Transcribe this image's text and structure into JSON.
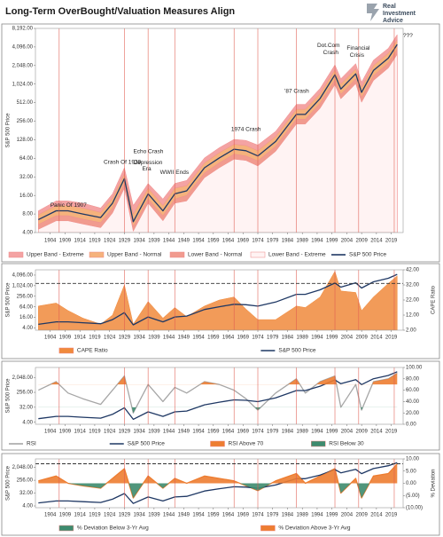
{
  "logo": [
    "Real",
    "Investment",
    "Advice"
  ],
  "chart_data": [
    {
      "type": "line",
      "title": "Long-Term OverBought/Valuation Measures Align",
      "ylabel": "S&P 500 Price",
      "log_y": true,
      "x": [
        1900,
        1906,
        1910,
        1915,
        1921,
        1925,
        1929,
        1932,
        1937,
        1942,
        1946,
        1950,
        1956,
        1961,
        1966,
        1970,
        1974,
        1980,
        1987,
        1990,
        1995,
        2000,
        2002,
        2007,
        2009,
        2013,
        2018,
        2021
      ],
      "xlim": [
        1899,
        2023
      ],
      "xticks": [
        1904,
        1909,
        1914,
        1919,
        1924,
        1929,
        1934,
        1939,
        1944,
        1949,
        1954,
        1959,
        1964,
        1969,
        1974,
        1979,
        1984,
        1989,
        1994,
        1999,
        2004,
        2009,
        2014,
        2019
      ],
      "ylim": [
        4,
        8192
      ],
      "yticks": [
        {
          "value": 4,
          "label": "4.00"
        },
        {
          "value": 8,
          "label": "8.00"
        },
        {
          "value": 16,
          "label": "16.00"
        },
        {
          "value": 32,
          "label": "32.00"
        },
        {
          "value": 64,
          "label": "64.00"
        },
        {
          "value": 128,
          "label": "128.00"
        },
        {
          "value": 256,
          "label": "256.00"
        },
        {
          "value": 512,
          "label": "512.00"
        },
        {
          "value": 1024,
          "label": "1,024.00"
        },
        {
          "value": 2048,
          "label": "2,048.00"
        },
        {
          "value": 4096,
          "label": "4,096.00"
        },
        {
          "value": 8192,
          "label": "8,192.00"
        }
      ],
      "markers": [
        1907,
        1929,
        1937,
        1946,
        1966,
        1974,
        1987,
        2000,
        2008,
        2020
      ],
      "annotations": [
        "Panic Of 1907",
        "Crash Of 1929",
        "Echo Crash",
        "Depression",
        "Era",
        "WWII Ends",
        "1974 Crash",
        "'87 Crash",
        "Dot.Com",
        "Crash",
        "Financial",
        "Crisis",
        "???"
      ],
      "series": [
        {
          "name": "Upper Band - Extreme",
          "color": "#f4a3a3",
          "style": "band",
          "values": [
            9,
            13,
            13,
            12,
            10,
            17,
            45,
            11,
            25,
            14,
            25,
            28,
            65,
            95,
            130,
            125,
            105,
            175,
            480,
            480,
            870,
            2100,
            1250,
            2200,
            1100,
            2500,
            3900,
            6500
          ]
        },
        {
          "name": "Upper Band - Normal",
          "color": "#f5b27c",
          "style": "band",
          "values": [
            7.8,
            11,
            11,
            10,
            8.5,
            14.5,
            36,
            8,
            21,
            11,
            21,
            23,
            54,
            79,
            108,
            103,
            85,
            145,
            400,
            400,
            720,
            1750,
            1030,
            1800,
            910,
            2050,
            3250,
            5400
          ]
        },
        {
          "name": "Lower Band - Normal",
          "color": "#f19b8f",
          "style": "band",
          "values": [
            5.4,
            7.5,
            7.5,
            6.6,
            5.8,
            10,
            25,
            5,
            14,
            7.5,
            14,
            16,
            37,
            54,
            75,
            70,
            58,
            100,
            275,
            275,
            500,
            1200,
            700,
            1250,
            620,
            1400,
            2250,
            3750
          ]
        },
        {
          "name": "Lower Band - Extreme",
          "color": "#fff3f3",
          "style": "band",
          "values": [
            4.5,
            6.2,
            6.2,
            5.5,
            4.8,
            8.3,
            21,
            4.2,
            12,
            6.2,
            12,
            13,
            31,
            45,
            62,
            59,
            48,
            83,
            230,
            230,
            415,
            1000,
            590,
            1040,
            520,
            1170,
            1870,
            3100
          ]
        },
        {
          "name": "S&P 500 Price",
          "color": "#1f3864",
          "style": "line",
          "values": [
            6.5,
            9,
            9,
            8,
            7,
            12,
            30,
            6,
            17,
            9,
            17,
            19,
            45,
            65,
            90,
            85,
            70,
            120,
            330,
            330,
            600,
            1450,
            850,
            1500,
            750,
            1700,
            2700,
            4500
          ]
        }
      ]
    },
    {
      "type": "line",
      "ylabel": "S&P 500 Price",
      "y2label": "CAPE Ratio",
      "log_y": true,
      "x": [
        1900,
        1906,
        1910,
        1915,
        1921,
        1925,
        1929,
        1932,
        1937,
        1942,
        1946,
        1950,
        1956,
        1961,
        1966,
        1970,
        1974,
        1980,
        1987,
        1990,
        1995,
        2000,
        2002,
        2007,
        2009,
        2013,
        2018,
        2021
      ],
      "xlim": [
        1899,
        2023
      ],
      "xticks": [
        1904,
        1909,
        1914,
        1919,
        1924,
        1929,
        1934,
        1939,
        1944,
        1949,
        1954,
        1959,
        1964,
        1969,
        1974,
        1979,
        1984,
        1989,
        1994,
        1999,
        2004,
        2009,
        2014,
        2019
      ],
      "ylim": [
        3,
        8192
      ],
      "yticks": [
        {
          "value": 4,
          "label": "4.00"
        },
        {
          "value": 16,
          "label": "16.00"
        },
        {
          "value": 64,
          "label": "64.00"
        },
        {
          "value": 256,
          "label": "256.00"
        },
        {
          "value": 1024,
          "label": "1,024.00"
        },
        {
          "value": 4096,
          "label": "4,096.00"
        }
      ],
      "y2lim": [
        2,
        42
      ],
      "y2ticks": [
        {
          "value": 2,
          "label": "2.00"
        },
        {
          "value": 12,
          "label": "12.00"
        },
        {
          "value": 22,
          "label": "22.00"
        },
        {
          "value": 32,
          "label": "32.00"
        },
        {
          "value": 42,
          "label": "42.00"
        }
      ],
      "reference_line": 33,
      "markers": [
        1907,
        1929,
        1937,
        1946,
        1966,
        1974,
        1987,
        2000,
        2008,
        2020
      ],
      "series": [
        {
          "name": "CAPE Ratio",
          "color": "#f08a3c",
          "style": "area",
          "axis": "y2",
          "values": [
            18,
            20,
            15,
            10,
            6,
            12,
            32,
            6,
            21,
            10,
            17,
            11,
            18,
            22,
            24,
            16,
            9,
            9,
            18,
            17,
            24,
            41,
            28,
            27,
            15,
            24,
            33,
            38
          ]
        },
        {
          "name": "S&P 500 Price",
          "color": "#1f3864",
          "style": "line",
          "values": [
            6.5,
            9,
            9,
            8,
            7,
            12,
            30,
            6,
            17,
            9,
            17,
            19,
            45,
            65,
            90,
            85,
            70,
            120,
            330,
            330,
            600,
            1450,
            850,
            1500,
            750,
            1700,
            2700,
            4500
          ]
        }
      ]
    },
    {
      "type": "line",
      "ylabel": "S&P 500 Price",
      "log_y": true,
      "x": [
        1900,
        1906,
        1910,
        1915,
        1921,
        1925,
        1929,
        1932,
        1937,
        1942,
        1946,
        1950,
        1956,
        1961,
        1966,
        1970,
        1974,
        1980,
        1987,
        1990,
        1995,
        2000,
        2002,
        2007,
        2009,
        2013,
        2018,
        2021
      ],
      "xlim": [
        1899,
        2023
      ],
      "xticks": [
        1904,
        1909,
        1914,
        1919,
        1924,
        1929,
        1934,
        1939,
        1944,
        1949,
        1954,
        1959,
        1964,
        1969,
        1974,
        1979,
        1984,
        1989,
        1994,
        1999,
        2004,
        2009,
        2014,
        2019
      ],
      "ylim": [
        3,
        8192
      ],
      "yticks": [
        {
          "value": 4,
          "label": "4.00"
        },
        {
          "value": 32,
          "label": "32.00"
        },
        {
          "value": 256,
          "label": "256.00"
        },
        {
          "value": 2048,
          "label": "2,048.00"
        }
      ],
      "y2lim": [
        0,
        100
      ],
      "y2ticks": [
        {
          "value": 0,
          "label": "0.00"
        },
        {
          "value": 20,
          "label": "20.00"
        },
        {
          "value": 40,
          "label": "40.00"
        },
        {
          "value": 60,
          "label": "60.00"
        },
        {
          "value": 80,
          "label": "80.00"
        },
        {
          "value": 100,
          "label": "100.00"
        }
      ],
      "markers": [
        1907,
        1929,
        1937,
        1946,
        1966,
        1974,
        1987,
        2000,
        2008,
        2020
      ],
      "series": [
        {
          "name": "RSI",
          "color": "#a6a6a6",
          "style": "line",
          "axis": "y2",
          "values": [
            60,
            75,
            55,
            45,
            35,
            60,
            85,
            20,
            70,
            40,
            65,
            55,
            75,
            70,
            60,
            45,
            25,
            55,
            80,
            55,
            75,
            85,
            30,
            70,
            25,
            75,
            80,
            90
          ]
        },
        {
          "name": "S&P 500 Price",
          "color": "#1f3864",
          "style": "line",
          "values": [
            6.5,
            9,
            9,
            8,
            7,
            12,
            30,
            6,
            17,
            9,
            17,
            19,
            45,
            65,
            90,
            85,
            70,
            120,
            330,
            330,
            600,
            1450,
            850,
            1500,
            750,
            1700,
            2700,
            4500
          ]
        }
      ],
      "fills": [
        {
          "name": "RSI Above 70",
          "color": "#ed7d31",
          "series": 0,
          "threshold": 70,
          "side": "above"
        },
        {
          "name": "RSI Below 30",
          "color": "#3d8b6e",
          "series": 0,
          "threshold": 30,
          "side": "below"
        }
      ]
    },
    {
      "type": "line",
      "ylabel": "S&P 500 Price",
      "y2label": "% Deviation",
      "log_y": true,
      "x": [
        1900,
        1906,
        1910,
        1915,
        1921,
        1925,
        1929,
        1932,
        1937,
        1942,
        1946,
        1950,
        1956,
        1961,
        1966,
        1970,
        1974,
        1980,
        1987,
        1990,
        1995,
        2000,
        2002,
        2007,
        2009,
        2013,
        2018,
        2021
      ],
      "xlim": [
        1899,
        2023
      ],
      "xticks": [
        1904,
        1909,
        1914,
        1919,
        1924,
        1929,
        1934,
        1939,
        1944,
        1949,
        1954,
        1959,
        1964,
        1969,
        1974,
        1979,
        1984,
        1989,
        1994,
        1999,
        2004,
        2009,
        2014,
        2019
      ],
      "ylim": [
        3,
        8192
      ],
      "yticks": [
        {
          "value": 4,
          "label": "4.00"
        },
        {
          "value": 32,
          "label": "32.00"
        },
        {
          "value": 256,
          "label": "256.00"
        },
        {
          "value": 2048,
          "label": "2,048.00"
        }
      ],
      "y2lim": [
        -10,
        10
      ],
      "y2ticks": [
        {
          "value": -10,
          "label": "(10.00)"
        },
        {
          "value": -5,
          "label": "(5.00)"
        },
        {
          "value": 0,
          "label": "0.00"
        },
        {
          "value": 5,
          "label": "5.00"
        },
        {
          "value": 10,
          "label": "10.00"
        }
      ],
      "reference_line": 8,
      "markers": [
        1907,
        1929,
        1937,
        1946,
        1966,
        1974,
        1987,
        2000,
        2008,
        2020
      ],
      "series": [
        {
          "color": "#ed7d31",
          "style": "line",
          "axis": "y2",
          "values": [
            1,
            3,
            0,
            -1,
            -2,
            2,
            6,
            -6,
            3,
            -2,
            2,
            0,
            3,
            2,
            1,
            -1,
            -3,
            1,
            4,
            0,
            3,
            6,
            -4,
            2,
            -6,
            3,
            4,
            8
          ]
        },
        {
          "color": "#1f3864",
          "style": "line",
          "values": [
            6.5,
            9,
            9,
            8,
            7,
            12,
            30,
            6,
            17,
            9,
            17,
            19,
            45,
            65,
            90,
            85,
            70,
            120,
            330,
            330,
            600,
            1450,
            850,
            1500,
            750,
            1700,
            2700,
            4500
          ]
        }
      ],
      "fills": [
        {
          "name": "% Deviation Below 3-Yr Avg",
          "color": "#3d8b6e",
          "series": 0,
          "threshold": 0,
          "side": "below"
        },
        {
          "name": "% Deviation Above 3-Yr Avg",
          "color": "#ed7d31",
          "series": 0,
          "threshold": 0,
          "side": "above"
        }
      ]
    }
  ]
}
